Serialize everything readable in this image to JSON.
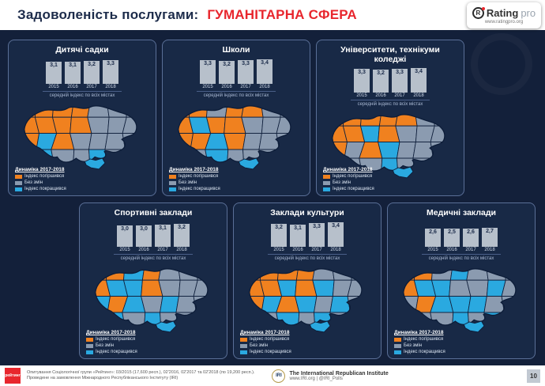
{
  "header": {
    "title_prefix": "Задоволеність послугами:",
    "title_highlight": "ГУМАНІТАРНА СФЕРА"
  },
  "logo": {
    "mark": "R",
    "name": "Rating",
    "suffix": "pro",
    "url": "www.ratingpro.org"
  },
  "chart_caption": "середній індекс по всіх містах",
  "legend": {
    "title": "Динаміка 2017-2018",
    "items": [
      {
        "key": "o",
        "label": "Індекс погіршився"
      },
      {
        "key": "g",
        "label": "Без змін"
      },
      {
        "key": "b",
        "label": "Індекс покращився"
      }
    ]
  },
  "map_colors": {
    "o": "#f0811f",
    "g": "#8b9bb0",
    "b": "#2aa9e0"
  },
  "accent_colors": {
    "background": "#13203a",
    "highlight_red": "#e8262d",
    "bar": "#b7c0cb"
  },
  "chart_data": [
    {
      "type": "bar",
      "title": "Дитячі садки",
      "categories": [
        "2015",
        "2016",
        "2017",
        "2018"
      ],
      "values": [
        3.1,
        3.1,
        3.2,
        3.3
      ],
      "value_labels": [
        "3,1",
        "3,1",
        "3,2",
        "3,3"
      ],
      "caption": "середній індекс по всіх містах",
      "ylim": [
        0,
        4
      ]
    },
    {
      "type": "bar",
      "title": "Школи",
      "categories": [
        "2015",
        "2016",
        "2017",
        "2018"
      ],
      "values": [
        3.3,
        3.2,
        3.3,
        3.4
      ],
      "value_labels": [
        "3,3",
        "3,2",
        "3,3",
        "3,4"
      ],
      "caption": "середній індекс по всіх містах",
      "ylim": [
        0,
        4
      ]
    },
    {
      "type": "bar",
      "title": "Університети, технікуми коледжі",
      "categories": [
        "2015",
        "2016",
        "2017",
        "2018"
      ],
      "values": [
        3.3,
        3.2,
        3.3,
        3.4
      ],
      "value_labels": [
        "3,3",
        "3,2",
        "3,3",
        "3,4"
      ],
      "caption": "середній індекс по всіх містах",
      "ylim": [
        0,
        4
      ]
    },
    {
      "type": "bar",
      "title": "Спортивні заклади",
      "categories": [
        "2015",
        "2016",
        "2017",
        "2018"
      ],
      "values": [
        3.0,
        3.0,
        3.1,
        3.2
      ],
      "value_labels": [
        "3,0",
        "3,0",
        "3,1",
        "3,2"
      ],
      "caption": "середній індекс по всіх містах",
      "ylim": [
        0,
        4
      ]
    },
    {
      "type": "bar",
      "title": "Заклади культури",
      "categories": [
        "2015",
        "2016",
        "2017",
        "2018"
      ],
      "values": [
        3.2,
        3.1,
        3.3,
        3.4
      ],
      "value_labels": [
        "3,2",
        "3,1",
        "3,3",
        "3,4"
      ],
      "caption": "середній індекс по всіх містах",
      "ylim": [
        0,
        4
      ]
    },
    {
      "type": "bar",
      "title": "Медичні заклади",
      "categories": [
        "2015",
        "2016",
        "2017",
        "2018"
      ],
      "values": [
        2.6,
        2.5,
        2.6,
        2.7
      ],
      "value_labels": [
        "2,6",
        "2,5",
        "2,6",
        "2,7"
      ],
      "caption": "середній індекс по всіх містах",
      "ylim": [
        0,
        4
      ]
    }
  ],
  "panels": [
    {
      "map": [
        "o",
        "o",
        "o",
        "o",
        "g",
        "g",
        "g",
        "o",
        "o",
        "o",
        "o",
        "g",
        "g",
        "g",
        "o",
        "b",
        "o",
        "g",
        "g",
        "g",
        "g",
        "g",
        "b",
        "g",
        "g",
        "b",
        "g",
        "g",
        "b"
      ]
    },
    {
      "map": [
        "o",
        "o",
        "g",
        "o",
        "o",
        "g",
        "g",
        "o",
        "b",
        "o",
        "o",
        "g",
        "g",
        "g",
        "o",
        "o",
        "b",
        "o",
        "g",
        "g",
        "g",
        "g",
        "g",
        "b",
        "g",
        "g",
        "g",
        "g",
        "b"
      ]
    },
    {
      "map": [
        "o",
        "o",
        "o",
        "o",
        "o",
        "g",
        "g",
        "o",
        "o",
        "b",
        "o",
        "g",
        "g",
        "g",
        "o",
        "g",
        "o",
        "b",
        "g",
        "g",
        "g",
        "g",
        "g",
        "g",
        "b",
        "g",
        "g",
        "g",
        "b"
      ]
    },
    {
      "map": [
        "o",
        "o",
        "b",
        "o",
        "g",
        "g",
        "g",
        "o",
        "b",
        "b",
        "o",
        "g",
        "g",
        "g",
        "b",
        "o",
        "b",
        "g",
        "b",
        "g",
        "g",
        "g",
        "b",
        "g",
        "b",
        "g",
        "g",
        "g",
        "b"
      ]
    },
    {
      "map": [
        "o",
        "o",
        "o",
        "o",
        "g",
        "g",
        "g",
        "o",
        "o",
        "b",
        "o",
        "b",
        "g",
        "g",
        "o",
        "b",
        "o",
        "b",
        "g",
        "b",
        "g",
        "g",
        "g",
        "b",
        "g",
        "b",
        "g",
        "g",
        "b"
      ]
    },
    {
      "map": [
        "o",
        "o",
        "g",
        "b",
        "g",
        "g",
        "g",
        "o",
        "b",
        "b",
        "g",
        "g",
        "b",
        "g",
        "g",
        "o",
        "b",
        "b",
        "b",
        "g",
        "g",
        "g",
        "g",
        "g",
        "b",
        "g",
        "b",
        "g",
        "b"
      ]
    }
  ],
  "footer": {
    "rating_logo": "рейтинг",
    "survey_line1": "Опитування Соціологічної групи «Рейтинг»: 03/2015 (17,600 респ.), 02'2016, 02'2017 та 02'2018 (по 19,200 респ.).",
    "survey_line2": "Проведене на замовлення Міжнародного Республіканського Інституту (IRI)",
    "iri": {
      "abbr": "IRI",
      "name": "The International Republican Institute",
      "contacts": "www.IRI.org | @IRI_Polls"
    },
    "page": "10"
  }
}
